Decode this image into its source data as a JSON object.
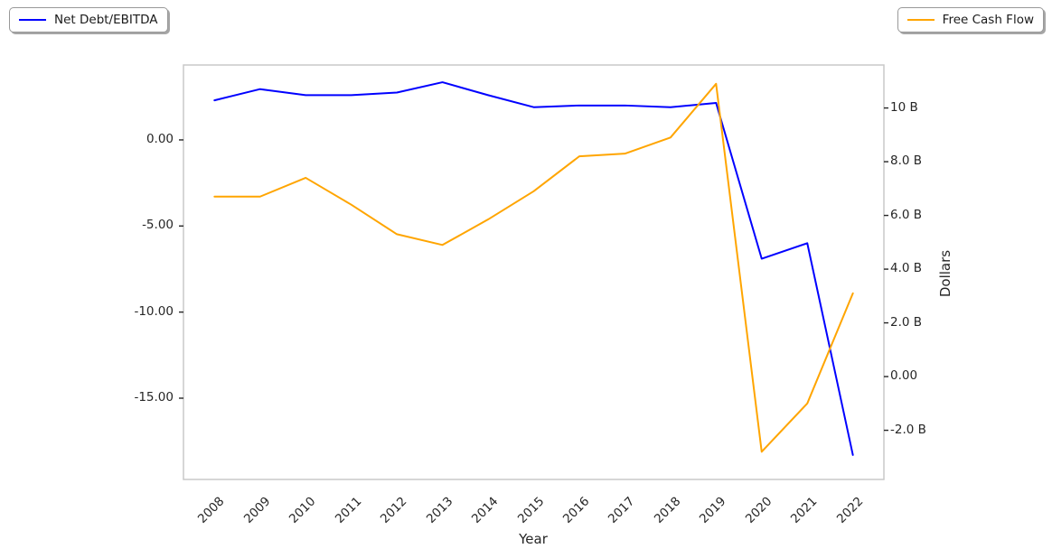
{
  "figure": {
    "background": "#ffffff",
    "plot_border_color": "#c9c9c9",
    "tick_color": "#262626",
    "text_color": "#262626"
  },
  "chart_data": {
    "type": "line",
    "title": "",
    "xlabel": "Year",
    "ylabel_left": "",
    "ylabel_right": "Dollars",
    "grid": false,
    "categories": [
      "2008",
      "2009",
      "2010",
      "2011",
      "2012",
      "2013",
      "2014",
      "2015",
      "2016",
      "2017",
      "2018",
      "2019",
      "2020",
      "2021",
      "2022"
    ],
    "series": [
      {
        "name": "Net Debt/EBITDA",
        "axis": "left",
        "color": "#0000ff",
        "values": [
          2.3,
          2.95,
          2.6,
          2.6,
          2.75,
          3.35,
          2.6,
          1.9,
          2.0,
          2.0,
          1.9,
          2.15,
          -6.9,
          -6.0,
          -18.3
        ]
      },
      {
        "name": "Free Cash Flow",
        "axis": "right",
        "color": "#ffa500",
        "values": [
          6.7,
          6.7,
          7.4,
          6.4,
          5.3,
          4.9,
          5.85,
          6.9,
          8.2,
          8.3,
          8.9,
          10.9,
          -2.8,
          -1.0,
          3.1
        ]
      }
    ],
    "left_axis": {
      "ylim": [
        -19.72,
        4.35
      ],
      "ticks": [
        {
          "label": "0.00",
          "value": 0
        },
        {
          "label": "-5.00",
          "value": -5
        },
        {
          "label": "-10.00",
          "value": -10
        },
        {
          "label": "-15.00",
          "value": -15
        }
      ]
    },
    "right_axis": {
      "ylim": [
        -3.83,
        11.6
      ],
      "label": "Dollars",
      "ticks": [
        {
          "label": "10 B",
          "value": 10
        },
        {
          "label": "8.0 B",
          "value": 8
        },
        {
          "label": "6.0 B",
          "value": 6
        },
        {
          "label": "4.0 B",
          "value": 4
        },
        {
          "label": "2.0 B",
          "value": 2
        },
        {
          "label": "0.00",
          "value": 0
        },
        {
          "label": "-2.0 B",
          "value": -2
        }
      ]
    },
    "x_axis": {
      "xlim": [
        2007.32,
        2022.68
      ],
      "label": "Year",
      "ticks": [
        "2008",
        "2009",
        "2010",
        "2011",
        "2012",
        "2013",
        "2014",
        "2015",
        "2016",
        "2017",
        "2018",
        "2019",
        "2020",
        "2021",
        "2022"
      ]
    },
    "legend_position_left_series": "Net Debt/EBITDA",
    "legend_position_right_series": "Free Cash Flow"
  }
}
